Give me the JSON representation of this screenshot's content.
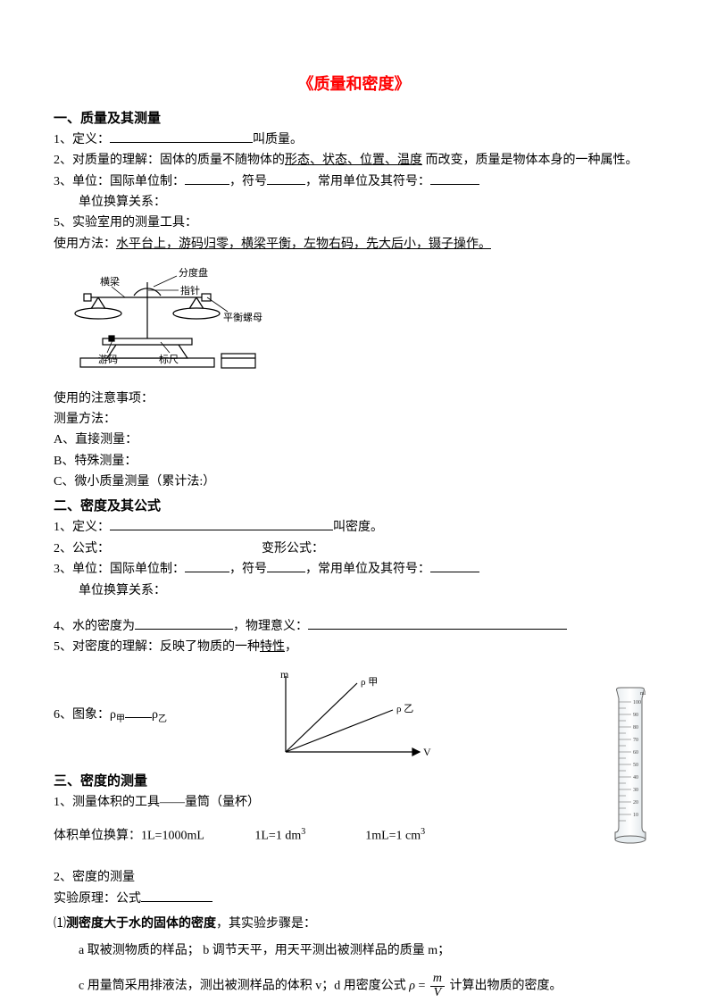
{
  "title": "《质量和密度》",
  "s1": {
    "heading": "一、质量及其测量",
    "p1a": "1、定义：",
    "p1b": "叫质量。",
    "p2a": "2、对质量的理解：固体的质量不随物体的",
    "p2u": "形态、状态、位置、温度",
    "p2b": " 而改变，质量是物体本身的一种属性。",
    "p3a": "3、单位：国际单位制：",
    "p3b": "，符号",
    "p3c": "，常用单位及其符号：",
    "p3d": "单位换算关系：",
    "p5": "5、实验室用的测量工具：",
    "p5m": "使用方法：",
    "p5u": "水平台上，游码归零，横梁平衡，左物右码，先大后小，镊子操作。",
    "bal": {
      "labels": {
        "fdp": "分度盘",
        "zz": "指针",
        "hl": "横梁",
        "phlm": "平衡螺母",
        "ym": "游码",
        "bc": "标尺"
      }
    },
    "att": "使用的注意事项：",
    "meth": "测量方法：",
    "ma": "A、直接测量：",
    "mb": "B、特殊测量：",
    "mc": "C、微小质量测量（累计法:）"
  },
  "s2": {
    "heading": "二、密度及其公式",
    "p1a": "1、定义：",
    "p1b": "叫密度。",
    "p2a": "2、公式：",
    "p2b": "变形公式：",
    "p3a": "3、单位：国际单位制：",
    "p3b": "，符号",
    "p3c": "，常用单位及其符号：",
    "p3d": "单位换算关系：",
    "p4a": "4、水的密度为",
    "p4b": "，物理意义：",
    "p5a": "5、对密度的理解：反映了物质的一种",
    "p5u": "特性",
    "p5b": "，",
    "p6a": "6、图象：ρ",
    "p6jia": "甲",
    "p6mid": "ρ",
    "p6yi": "乙",
    "graph": {
      "yLabel": "m",
      "xLabel": "V",
      "series1": "ρ 甲",
      "series2": "ρ 乙",
      "color": "#000000"
    }
  },
  "s3": {
    "heading": "三、密度的测量",
    "p1": "1、测量体积的工具——量筒（量杯）",
    "vol": {
      "a": "体积单位换算：1L=1000mL",
      "b": "1L=1 dm",
      "bexp": "3",
      "c": "1mL=1 cm",
      "cexp": "3"
    },
    "p2": "2、密度的测量",
    "p2b": "实验原理：公式",
    "p3": "⑴",
    "p3bold": "测密度大于水的固体的密度",
    "p3b": "，其实验步骤是：",
    "step_a": "a 取被测物质的样品； b 调节天平，用天平测出被测样品的质量 m；",
    "step_c1": "c 用量筒采用排液法，测出被测样品的体积 v；d 用密度公式",
    "step_c2": "计算出物质的密度。",
    "formula": {
      "lhs": "ρ",
      "eq": " = ",
      "num": "m",
      "den": "V"
    },
    "cylinder": {
      "unit": "ml",
      "ticks": [
        "100",
        "90",
        "80",
        "70",
        "60",
        "50",
        "40",
        "30",
        "20",
        "10"
      ],
      "stroke": "#555555",
      "fill": "#f7f9fa"
    }
  },
  "blanks": {
    "w160": 160,
    "w50": 50,
    "w43": 43,
    "w55": 55,
    "w250": 250,
    "w110": 110,
    "w30": 30,
    "w290": 290,
    "w80": 80
  }
}
